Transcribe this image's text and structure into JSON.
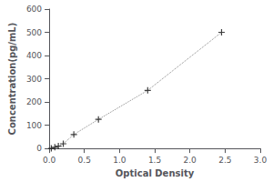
{
  "chart_data": {
    "type": "line",
    "xlabel": "Optical Density",
    "ylabel": "Concentration(pg/mL)",
    "x": [
      0.03,
      0.08,
      0.13,
      0.2,
      0.35,
      0.7,
      1.4,
      2.45
    ],
    "series": [
      {
        "type": "line",
        "color": "#888888",
        "line_style": "dotted",
        "values": [
          0,
          5,
          10,
          20,
          60,
          125,
          250,
          500
        ]
      },
      {
        "type": "scatter",
        "color": "#111111",
        "marker": "+",
        "values": [
          0,
          5,
          10,
          20,
          60,
          125,
          250,
          500
        ]
      }
    ],
    "xlim": [
      0,
      3
    ],
    "ylim": [
      0,
      600
    ],
    "xticks": [
      {
        "value": 0,
        "label": "0.0"
      },
      {
        "value": 0.5,
        "label": "0.5"
      },
      {
        "value": 1,
        "label": "1.0"
      },
      {
        "value": 1.5,
        "label": "1.5"
      },
      {
        "value": 2,
        "label": "2.0"
      },
      {
        "value": 2.5,
        "label": "2.5"
      },
      {
        "value": 3,
        "label": "3.0"
      }
    ],
    "yticks": [
      0,
      100,
      200,
      300,
      400,
      500,
      600
    ],
    "grid": false,
    "background_color": "#ffffff"
  }
}
